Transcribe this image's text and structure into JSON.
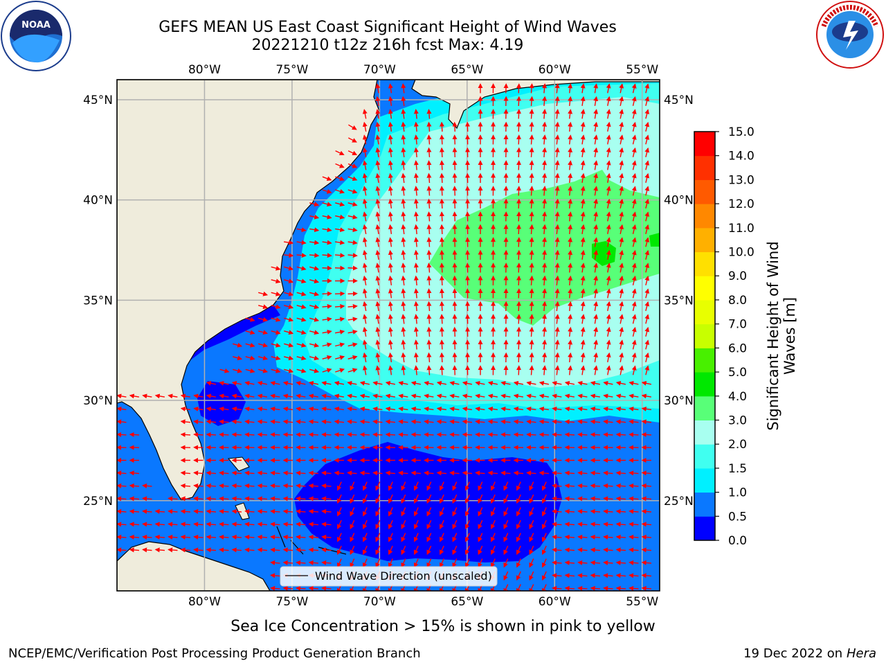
{
  "header": {
    "title_line1": "GEFS MEAN US East Coast Significant Height of Wind Waves",
    "title_line2": "20221210 t12z 216h fcst   Max: 4.19"
  },
  "logos": {
    "noaa": {
      "text": "NOAA",
      "ring_text": "NATIONAL OCEANIC AND ATMOSPHERIC ADMINISTRATION · U.S. DEPARTMENT OF COMMERCE"
    },
    "nws": {
      "ring_text": "NATIONAL WEATHER SERVICE"
    }
  },
  "map": {
    "lon_range": [
      -85,
      -54
    ],
    "lat_range": [
      20.5,
      46
    ],
    "lon_ticks": [
      {
        "value": -80,
        "label": "80°W"
      },
      {
        "value": -75,
        "label": "75°W"
      },
      {
        "value": -70,
        "label": "70°W"
      },
      {
        "value": -65,
        "label": "65°W"
      },
      {
        "value": -60,
        "label": "60°W"
      },
      {
        "value": -55,
        "label": "55°W"
      }
    ],
    "lat_ticks": [
      {
        "value": 45,
        "label": "45°N"
      },
      {
        "value": 40,
        "label": "40°N"
      },
      {
        "value": 35,
        "label": "35°N"
      },
      {
        "value": 30,
        "label": "30°N"
      },
      {
        "value": 25,
        "label": "25°N"
      }
    ],
    "legend_label": "Wind Wave Direction (unscaled)",
    "colors": {
      "land": "#efecdc",
      "grid": "#b0b0b0",
      "arrow": "#ff0000"
    }
  },
  "colorbar": {
    "label": "Significant Height of Wind Waves [m]",
    "levels": [
      {
        "value": "0.0",
        "color": "#0000ff"
      },
      {
        "value": "0.5",
        "color": "#0a78ff"
      },
      {
        "value": "1.0",
        "color": "#00f0ff"
      },
      {
        "value": "1.5",
        "color": "#40fff0"
      },
      {
        "value": "2.0",
        "color": "#a8fff0"
      },
      {
        "value": "3.0",
        "color": "#58ff78"
      },
      {
        "value": "4.0",
        "color": "#00e800"
      },
      {
        "value": "5.0",
        "color": "#48f000"
      },
      {
        "value": "6.0",
        "color": "#c8ff00"
      },
      {
        "value": "7.0",
        "color": "#e8ff00"
      },
      {
        "value": "8.0",
        "color": "#ffff00"
      },
      {
        "value": "9.0",
        "color": "#ffe000"
      },
      {
        "value": "10.0",
        "color": "#ffb000"
      },
      {
        "value": "11.0",
        "color": "#ff8800"
      },
      {
        "value": "12.0",
        "color": "#ff5a00"
      },
      {
        "value": "13.0",
        "color": "#ff3000"
      },
      {
        "value": "14.0",
        "color": "#ff0000"
      },
      {
        "value": "15.0",
        "color": null
      }
    ]
  },
  "footer": {
    "note": "Sea Ice Concentration > 15% is shown in pink to yellow",
    "branch": "NCEP/EMC/Verification Post Processing Product Generation Branch",
    "date": "19 Dec 2022 on",
    "host": "Hera"
  }
}
